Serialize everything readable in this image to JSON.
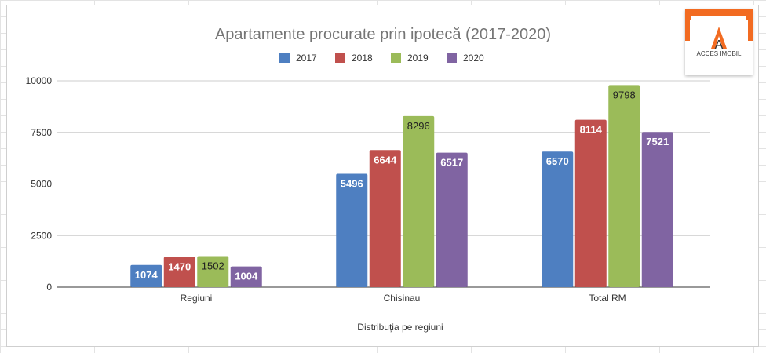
{
  "chart_data": {
    "type": "bar",
    "title": "Apartamente procurate prin ipotecă (2017-2020)",
    "xlabel": "Distribuția pe regiuni",
    "ylabel": "",
    "categories": [
      "Regiuni",
      "Chisinau",
      "Total RM"
    ],
    "series": [
      {
        "name": "2017",
        "color": "#4e7fc1",
        "values": [
          1074,
          5496,
          6570
        ]
      },
      {
        "name": "2018",
        "color": "#c0504d",
        "values": [
          1470,
          6644,
          8114
        ]
      },
      {
        "name": "2019",
        "color": "#9bbb59",
        "values": [
          1502,
          8296,
          9798
        ]
      },
      {
        "name": "2020",
        "color": "#8064a2",
        "values": [
          1004,
          6517,
          7521
        ]
      }
    ],
    "ylim": [
      0,
      10000
    ],
    "yticks": [
      0,
      2500,
      5000,
      7500,
      10000
    ],
    "grid": true,
    "legend_position": "top",
    "data_labels": true
  },
  "logo": {
    "text": "ACCES IMOBIL",
    "accent": "#f26b21"
  }
}
